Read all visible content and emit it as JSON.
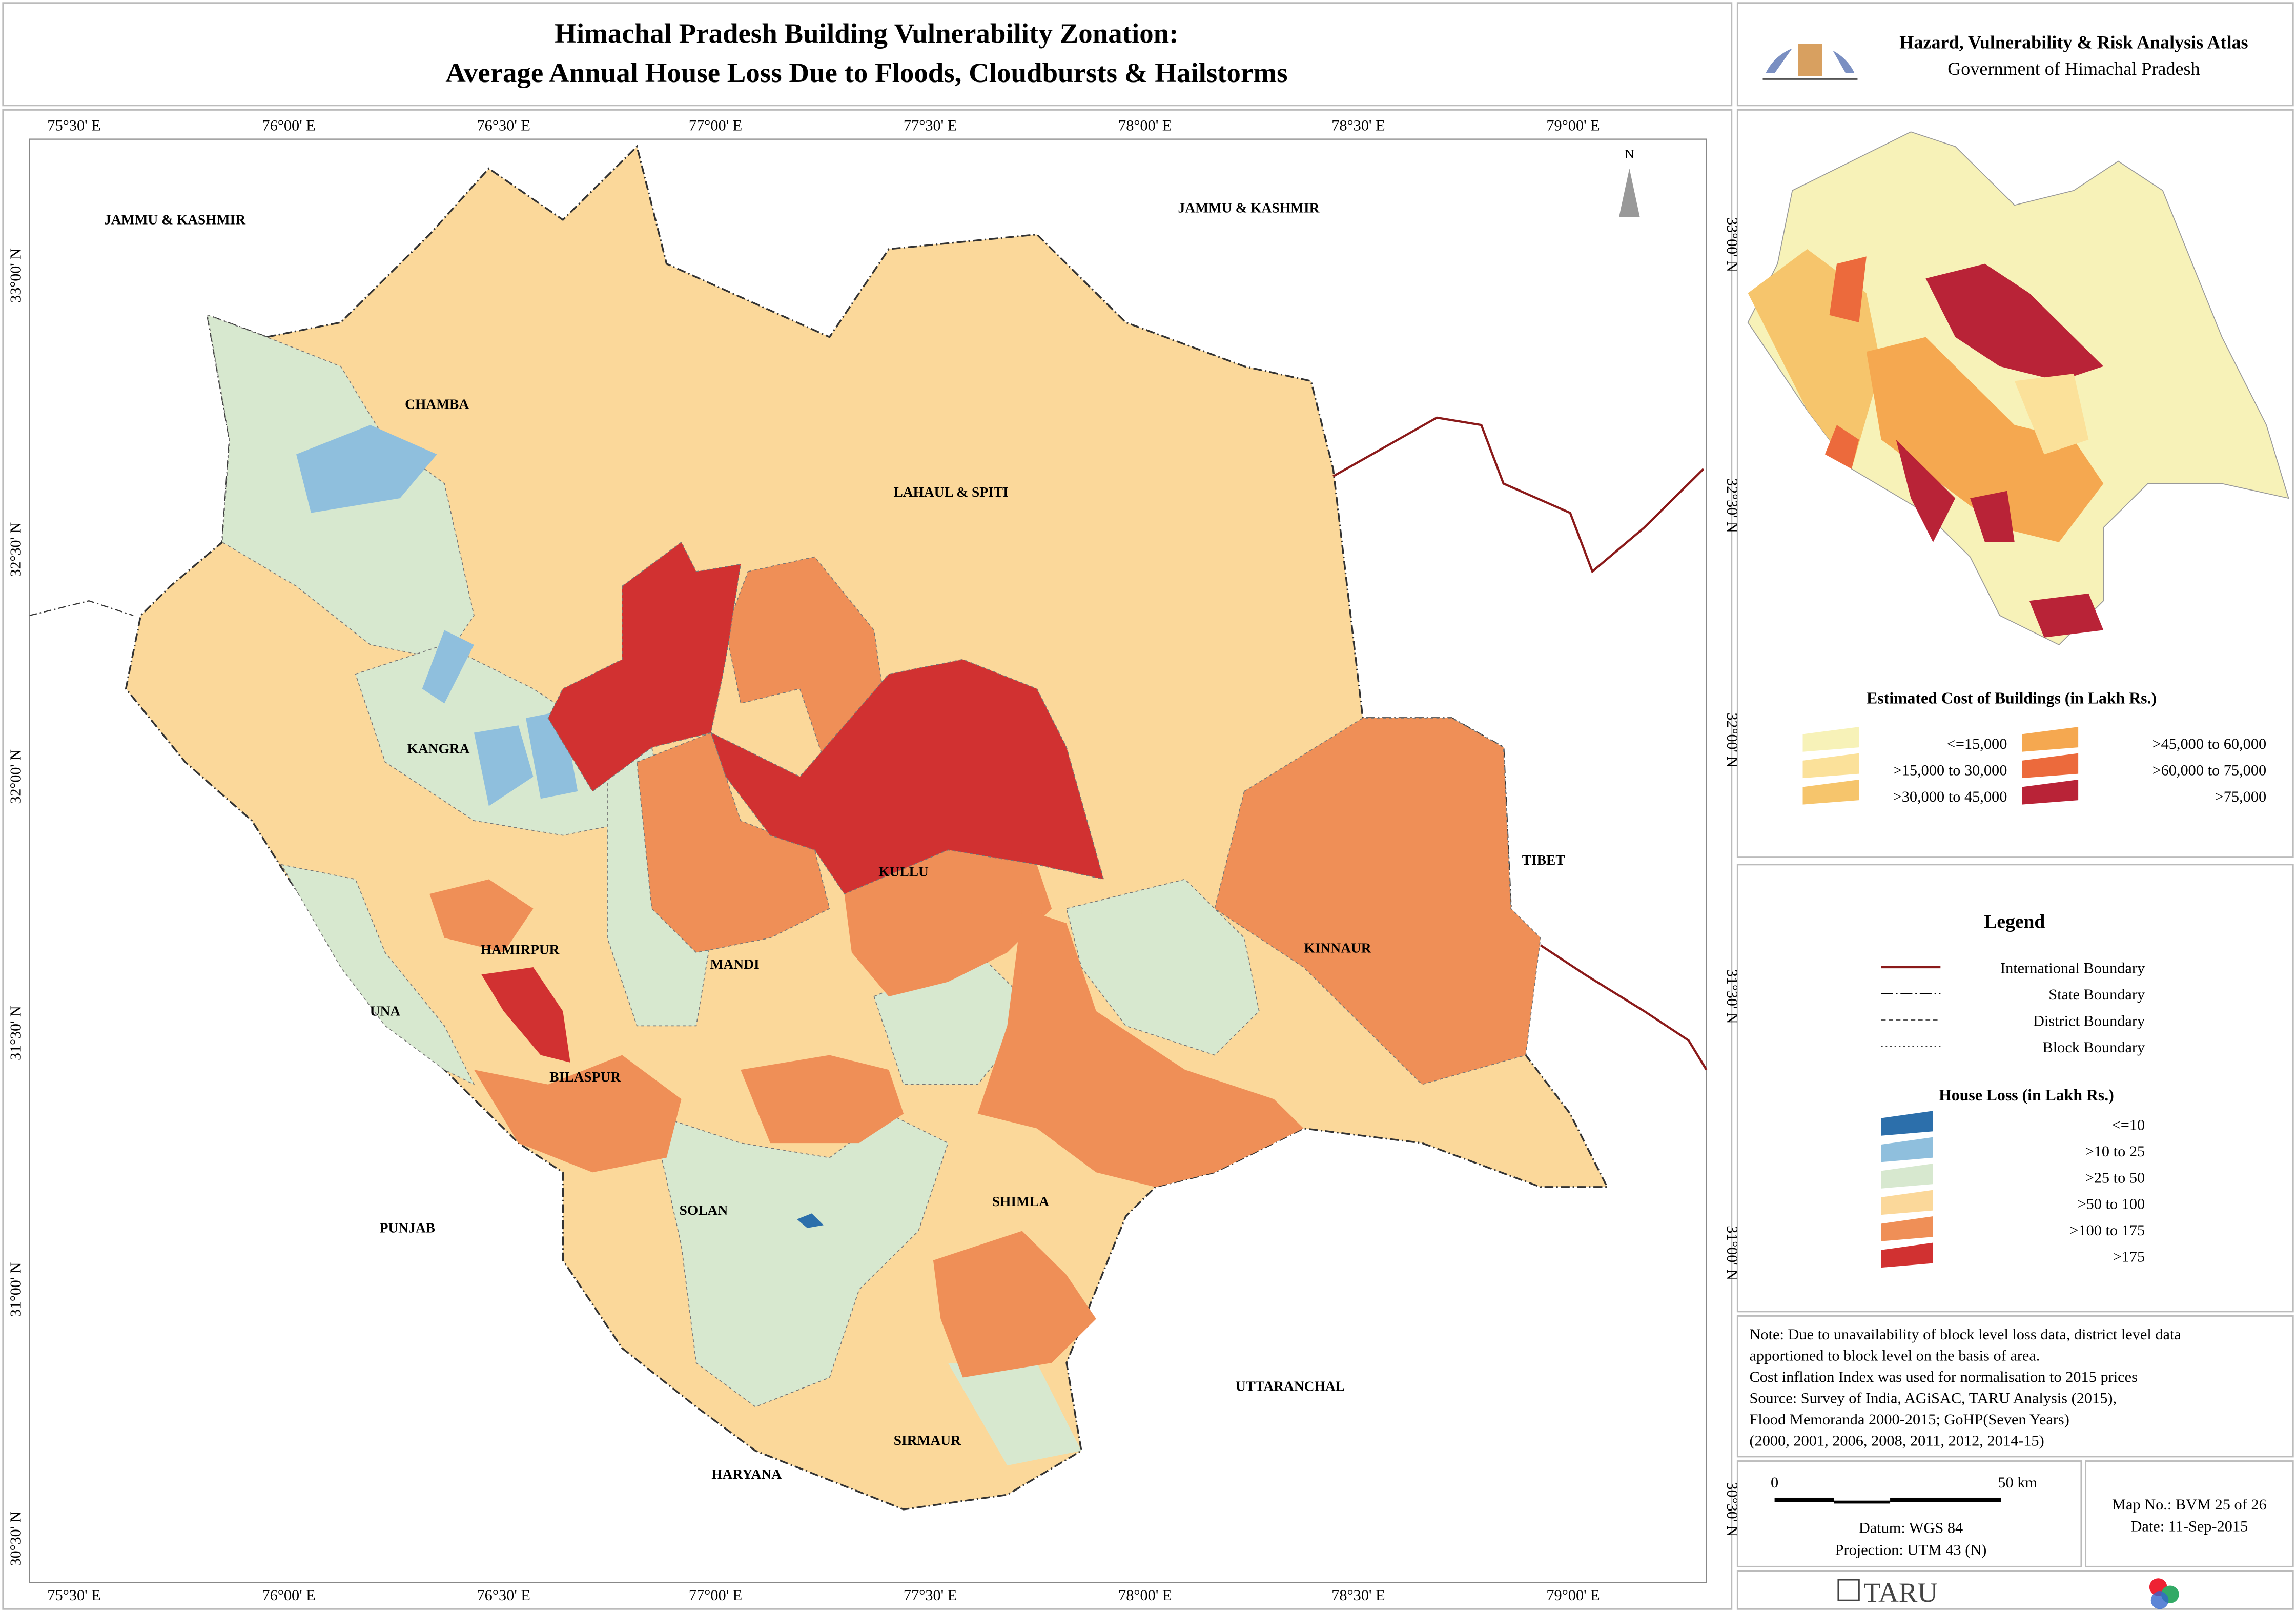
{
  "header": {
    "title_lines": [
      "Himachal Pradesh Building Vulnerability Zonation:",
      "Average Annual House Loss Due to Floods, Cloudbursts & Hailstorms"
    ],
    "atlas": "Hazard, Vulnerability & Risk Analysis Atlas",
    "government": "Government of Himachal Pradesh"
  },
  "map": {
    "north": "N",
    "lon_labels": [
      "75°30' E",
      "76°00' E",
      "76°30' E",
      "77°00' E",
      "77°30' E",
      "78°00' E",
      "78°30' E",
      "79°00' E"
    ],
    "lat_labels": [
      "33°00' N",
      "32°30' N",
      "32°00' N",
      "31°30' N",
      "31°00' N",
      "30°30' N"
    ],
    "region_labels": [
      "JAMMU & KASHMIR",
      "JAMMU & KASHMIR",
      "CHAMBA",
      "LAHAUL & SPITI",
      "KANGRA",
      "KULLU",
      "TIBET",
      "KINNAUR",
      "HAMIRPUR",
      "MANDI",
      "UNA",
      "BILASPUR",
      "PUNJAB",
      "SOLAN",
      "SHIMLA",
      "UTTARANCHAL",
      "SIRMAUR",
      "HARYANA"
    ]
  },
  "inset_legend": {
    "title": "Estimated Cost of Buildings (in Lakh Rs.)",
    "items": [
      "<=15,000",
      ">15,000 to 30,000",
      ">30,000 to 45,000",
      ">45,000 to 60,000",
      ">60,000 to 75,000",
      ">75,000"
    ]
  },
  "legend": {
    "title": "Legend",
    "lines": [
      "International Boundary",
      "State Boundary",
      "District Boundary",
      "Block Boundary"
    ],
    "house_loss_title": "House Loss (in Lakh Rs.)",
    "house_loss_items": [
      "<=10",
      ">10 to 25",
      ">25 to 50",
      ">50 to 100",
      ">100 to 175",
      ">175"
    ]
  },
  "note": [
    "Note: Due to unavailability of block level loss data, district level data",
    "apportioned to block level on the basis of area.",
    "Cost inflation Index was used for normalisation to 2015 prices",
    "Source: Survey of India, AGiSAC, TARU Analysis (2015),",
    "Flood Memoranda 2000-2015; GoHP(Seven Years)",
    "(2000, 2001,  2006, 2008, 2011, 2012, 2014-15)"
  ],
  "scale": {
    "start": "0",
    "end": "50 km",
    "datum": "Datum: WGS 84",
    "projection": "Projection: UTM 43 (N)"
  },
  "map_info": {
    "map_no": "Map No.: BVM 25 of 26",
    "date": "Date: 11-Sep-2015"
  },
  "footer": {
    "brand": "TARU"
  }
}
